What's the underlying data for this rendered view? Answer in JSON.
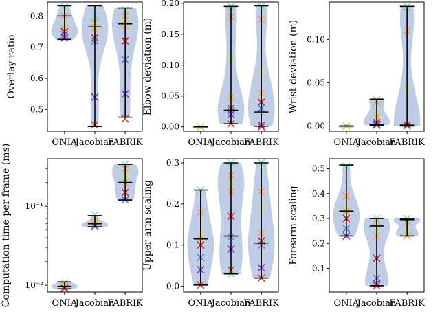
{
  "figure": {
    "categories": [
      "ONIA",
      "Jacobian",
      "FABRIK"
    ],
    "marker_colors": [
      "#7fe0b4",
      "#ff9a5c",
      "#c0e35a",
      "#f2a65a",
      "#cc1f1a",
      "#5b7ec9",
      "#7b2ed6",
      "#d63a1a"
    ],
    "violin_color": "#b4c6e2",
    "line_color": "#000000"
  },
  "chart_data": [
    {
      "type": "violin",
      "ylabel": "Overlay ratio",
      "categories": [
        "ONIA",
        "Jacobian",
        "FABRIK"
      ],
      "ylim": [
        0.43,
        0.845
      ],
      "yticks": [
        0.5,
        0.6,
        0.7,
        0.8
      ],
      "yticklabels": [
        "0.5",
        "0.6",
        "0.7",
        "0.8"
      ],
      "log": false,
      "series": [
        {
          "points": [
            0.83,
            0.8,
            0.78,
            0.76,
            0.75,
            0.74,
            0.73
          ],
          "min": 0.725,
          "max": 0.833,
          "median": 0.8
        },
        {
          "points": [
            0.8,
            0.78,
            0.77,
            0.76,
            0.73,
            0.72,
            0.54,
            0.45
          ],
          "min": 0.445,
          "max": 0.833,
          "median": 0.765
        },
        {
          "points": [
            0.82,
            0.8,
            0.78,
            0.77,
            0.72,
            0.66,
            0.55,
            0.47
          ],
          "min": 0.475,
          "max": 0.826,
          "median": 0.775
        }
      ]
    },
    {
      "type": "violin",
      "ylabel": "Elbow deviation (m)",
      "categories": [
        "ONIA",
        "Jacobian",
        "FABRIK"
      ],
      "ylim": [
        -0.007,
        0.202
      ],
      "yticks": [
        0.0,
        0.05,
        0.1,
        0.15,
        0.2
      ],
      "yticklabels": [
        "0.00",
        "0.05",
        "0.10",
        "0.15",
        "0.20"
      ],
      "log": false,
      "series": [
        {
          "points": [
            0.0,
            0.0,
            0.0
          ],
          "min": 0.0,
          "max": 0.0,
          "median": 0.0
        },
        {
          "points": [
            0.195,
            0.178,
            0.112,
            0.048,
            0.03,
            0.026,
            0.02,
            0.005
          ],
          "min": 0.005,
          "max": 0.195,
          "median": 0.027
        },
        {
          "points": [
            0.195,
            0.174,
            0.09,
            0.055,
            0.04,
            0.03,
            0.003,
            0.0
          ],
          "min": 0.001,
          "max": 0.196,
          "median": 0.024
        }
      ]
    },
    {
      "type": "violin",
      "ylabel": "Wrist deviation (m)",
      "categories": [
        "ONIA",
        "Jacobian",
        "FABRIK"
      ],
      "ylim": [
        -0.006,
        0.143
      ],
      "yticks": [
        0.0,
        0.05,
        0.1
      ],
      "yticklabels": [
        "0.00",
        "0.05",
        "0.10"
      ],
      "log": false,
      "series": [
        {
          "points": [
            0.0,
            0.0,
            0.0
          ],
          "min": 0.0,
          "max": 0.0,
          "median": 0.0
        },
        {
          "points": [
            0.03,
            0.028,
            0.015,
            0.01,
            0.004,
            0.002,
            0.001
          ],
          "min": 0.001,
          "max": 0.031,
          "median": 0.002
        },
        {
          "points": [
            0.138,
            0.11,
            0.044,
            0.002,
            0.001,
            0.0
          ],
          "min": 0.0,
          "max": 0.138,
          "median": 0.001
        }
      ]
    },
    {
      "type": "violin",
      "ylabel": "Computation time per frame (ms)",
      "categories": [
        "ONIA",
        "Jacobian",
        "FABRIK"
      ],
      "ylim": [
        0.0082,
        0.4
      ],
      "yticks": [
        0.01,
        0.1
      ],
      "yticklabels": [
        "10⁻²",
        "10⁻¹"
      ],
      "log": true,
      "series": [
        {
          "points": [
            0.0107,
            0.0101,
            0.0097,
            0.0094,
            0.0091
          ],
          "min": 0.009,
          "max": 0.011,
          "median": 0.0097
        },
        {
          "points": [
            0.078,
            0.063,
            0.06,
            0.058,
            0.056,
            0.055
          ],
          "min": 0.055,
          "max": 0.076,
          "median": 0.06
        },
        {
          "points": [
            0.34,
            0.3,
            0.25,
            0.2,
            0.15,
            0.12
          ],
          "min": 0.12,
          "max": 0.34,
          "median": 0.2
        }
      ]
    },
    {
      "type": "violin",
      "ylabel": "Upper arm scaling",
      "categories": [
        "ONIA",
        "Jacobian",
        "FABRIK"
      ],
      "ylim": [
        -0.014,
        0.31
      ],
      "yticks": [
        0.0,
        0.1,
        0.2,
        0.3
      ],
      "yticklabels": [
        "0.0",
        "0.1",
        "0.2",
        "0.3"
      ],
      "log": false,
      "series": [
        {
          "points": [
            0.234,
            0.18,
            0.13,
            0.115,
            0.1,
            0.07,
            0.04,
            0.003
          ],
          "min": 0.003,
          "max": 0.234,
          "median": 0.115
        },
        {
          "points": [
            0.3,
            0.27,
            0.25,
            0.23,
            0.17,
            0.12,
            0.09,
            0.04,
            0.03
          ],
          "min": 0.03,
          "max": 0.3,
          "median": 0.122
        },
        {
          "points": [
            0.3,
            0.23,
            0.19,
            0.13,
            0.11,
            0.1,
            0.045,
            0.02
          ],
          "min": 0.02,
          "max": 0.3,
          "median": 0.105
        }
      ]
    },
    {
      "type": "violin",
      "ylabel": "Forearm scaling",
      "categories": [
        "ONIA",
        "Jacobian",
        "FABRIK"
      ],
      "ylim": [
        0.005,
        0.54
      ],
      "yticks": [
        0.1,
        0.2,
        0.3,
        0.4,
        0.5
      ],
      "yticklabels": [
        "0.1",
        "0.2",
        "0.3",
        "0.4",
        "0.5"
      ],
      "log": false,
      "series": [
        {
          "points": [
            0.51,
            0.39,
            0.34,
            0.33,
            0.3,
            0.26,
            0.23
          ],
          "min": 0.23,
          "max": 0.515,
          "median": 0.33
        },
        {
          "points": [
            0.3,
            0.29,
            0.26,
            0.23,
            0.14,
            0.06,
            0.04,
            0.03
          ],
          "min": 0.03,
          "max": 0.3,
          "median": 0.27
        },
        {
          "points": [
            0.3,
            0.29,
            0.25,
            0.23
          ],
          "min": 0.23,
          "max": 0.3,
          "median": 0.295
        }
      ]
    }
  ]
}
